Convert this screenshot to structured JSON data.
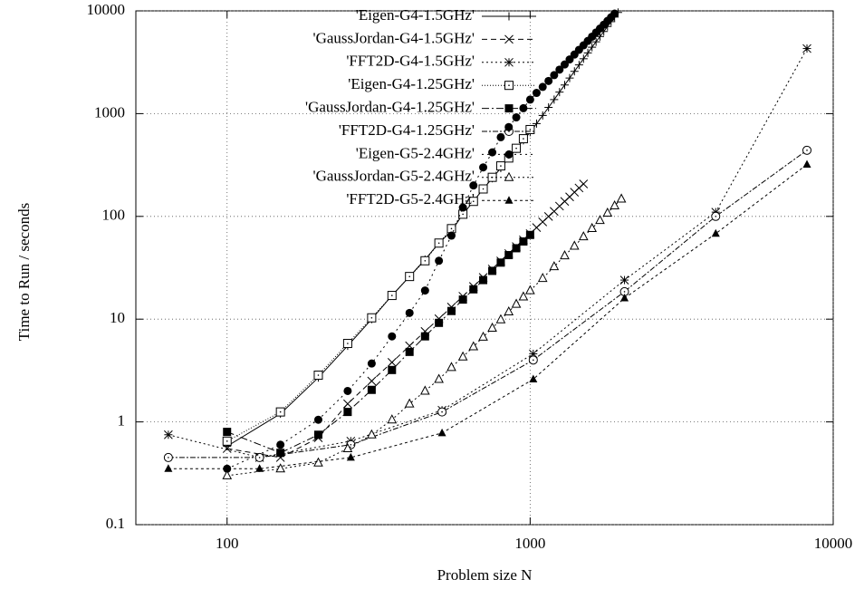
{
  "chart_data": {
    "type": "line",
    "log_x": true,
    "log_y": true,
    "grid": true,
    "legend": "top-center",
    "xlabel": "Problem size N",
    "ylabel": "Time to Run / seconds",
    "xlim": [
      50,
      10000
    ],
    "xticks": [
      100,
      1000,
      10000
    ],
    "ylim": [
      0.1,
      10000
    ],
    "yticks": [
      0.1,
      1,
      10,
      100,
      1000,
      10000
    ],
    "series": [
      {
        "name": "'Eigen-G4-1.5GHz'",
        "color": "#000000",
        "dash": "none",
        "marker": "plus",
        "x": [
          100,
          150,
          200,
          250,
          300,
          350,
          400,
          450,
          500,
          550,
          600,
          650,
          700,
          750,
          800,
          850,
          900,
          950,
          1000,
          1050,
          1100,
          1150,
          1200,
          1250,
          1300,
          1350,
          1400,
          1450,
          1500,
          1550,
          1600,
          1650,
          1700,
          1750,
          1800,
          1850,
          1900,
          1950
        ],
        "values": [
          0.58,
          1.2,
          2.7,
          5.5,
          10,
          17,
          26,
          38,
          55,
          72,
          105,
          140,
          185,
          235,
          295,
          370,
          455,
          550,
          660,
          800,
          960,
          1150,
          1370,
          1620,
          1900,
          2220,
          2580,
          2980,
          3420,
          3900,
          4430,
          5000,
          5630,
          6300,
          7050,
          7850,
          8700,
          9650
        ]
      },
      {
        "name": "'GaussJordan-G4-1.5GHz'",
        "color": "#000000",
        "dash": "6,4",
        "marker": "cross",
        "x": [
          100,
          150,
          200,
          250,
          300,
          350,
          400,
          450,
          500,
          550,
          600,
          650,
          700,
          750,
          800,
          850,
          900,
          950,
          1000,
          1050,
          1100,
          1150,
          1200,
          1250,
          1300,
          1350,
          1400,
          1450,
          1500
        ],
        "values": [
          0.55,
          0.45,
          0.7,
          1.5,
          2.5,
          3.8,
          5.5,
          7.6,
          10.1,
          13.1,
          16.7,
          20.8,
          25.5,
          30.8,
          36.8,
          43.5,
          50.9,
          59.1,
          68,
          77.8,
          88.4,
          99.9,
          112,
          126,
          140,
          155,
          172,
          189,
          207
        ]
      },
      {
        "name": "'FFT2D-G4-1.5GHz'",
        "color": "#000000",
        "dash": "2,3",
        "marker": "star",
        "x": [
          64,
          128,
          256,
          512,
          1024,
          2048,
          4096,
          8192
        ],
        "values": [
          0.75,
          0.45,
          0.65,
          1.3,
          4.6,
          24,
          110,
          4300
        ]
      },
      {
        "name": "'Eigen-G4-1.25GHz'",
        "color": "#000000",
        "dash": "1,2",
        "marker": "box-open",
        "x": [
          100,
          150,
          200,
          250,
          300,
          350,
          400,
          450,
          500,
          550,
          600,
          650,
          700,
          750,
          800,
          850,
          900,
          950,
          1000
        ],
        "values": [
          0.65,
          1.25,
          2.85,
          5.8,
          10.3,
          17,
          26,
          37,
          55,
          76,
          105,
          140,
          185,
          240,
          310,
          370,
          460,
          570,
          700
        ]
      },
      {
        "name": "'GaussJordan-G4-1.25GHz'",
        "color": "#000000",
        "dash": "8,3,2,3",
        "marker": "box-filled",
        "x": [
          100,
          150,
          200,
          250,
          300,
          350,
          400,
          450,
          500,
          550,
          600,
          650,
          700,
          750,
          800,
          850,
          900,
          950,
          1000
        ],
        "values": [
          0.8,
          0.5,
          0.75,
          1.25,
          2.05,
          3.2,
          4.8,
          6.8,
          9.2,
          12,
          15.5,
          19.5,
          24,
          29.5,
          35.5,
          42,
          49,
          57,
          66
        ]
      },
      {
        "name": "'FFT2D-G4-1.25GHz'",
        "color": "#000000",
        "dash": "6,2,2,2",
        "marker": "circle-open",
        "x": [
          64,
          128,
          256,
          512,
          1024,
          2048,
          4096,
          8192
        ],
        "values": [
          0.45,
          0.45,
          0.6,
          1.25,
          4.0,
          18.5,
          100,
          440
        ]
      },
      {
        "name": "'Eigen-G5-2.4GHz'",
        "color": "#000000",
        "dash": "2,4",
        "marker": "circle-filled",
        "x": [
          100,
          150,
          200,
          250,
          300,
          350,
          400,
          450,
          500,
          550,
          600,
          650,
          700,
          750,
          800,
          850,
          900,
          950,
          1000,
          1050,
          1100,
          1150,
          1200,
          1250,
          1300,
          1350,
          1400,
          1450,
          1500,
          1550,
          1600,
          1650,
          1700,
          1750,
          1800,
          1850,
          1900
        ],
        "values": [
          0.35,
          0.6,
          1.05,
          2.0,
          3.7,
          6.8,
          11.5,
          19,
          37,
          65,
          122,
          200,
          300,
          420,
          590,
          740,
          920,
          1130,
          1370,
          1590,
          1820,
          2080,
          2370,
          2680,
          3010,
          3370,
          3760,
          4180,
          4620,
          5100,
          5610,
          6160,
          6730,
          7340,
          7990,
          8670,
          9400
        ]
      },
      {
        "name": "'GaussJordan-G5-2.4GHz'",
        "color": "#000000",
        "dash": "2,3",
        "marker": "triangle-open",
        "x": [
          100,
          150,
          200,
          250,
          300,
          350,
          400,
          450,
          500,
          550,
          600,
          650,
          700,
          750,
          800,
          850,
          900,
          950,
          1000,
          1100,
          1200,
          1300,
          1400,
          1500,
          1600,
          1700,
          1800,
          1900,
          2000
        ],
        "values": [
          0.3,
          0.35,
          0.4,
          0.55,
          0.75,
          1.05,
          1.5,
          2.0,
          2.6,
          3.4,
          4.3,
          5.4,
          6.7,
          8.2,
          9.9,
          11.8,
          14,
          16.5,
          19,
          25,
          32.5,
          41.5,
          51.5,
          63.5,
          76.5,
          91.5,
          108,
          127,
          148
        ]
      },
      {
        "name": "'FFT2D-G5-2.4GHz'",
        "color": "#000000",
        "dash": "3,3",
        "marker": "triangle-filled",
        "x": [
          64,
          128,
          256,
          512,
          1024,
          2048,
          4096,
          8192
        ],
        "values": [
          0.35,
          0.35,
          0.45,
          0.78,
          2.6,
          16,
          68,
          320
        ]
      }
    ]
  }
}
